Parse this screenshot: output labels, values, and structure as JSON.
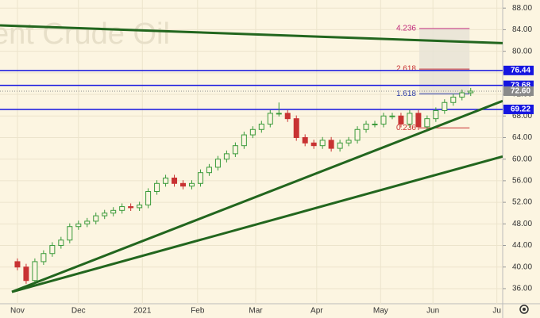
{
  "chart_data": {
    "type": "candlestick",
    "watermark": "ent Crude Oil",
    "xlim": [
      -6,
      167
    ],
    "ylim": [
      33.2,
      89.5
    ],
    "xticks": [
      {
        "value": 0,
        "label": "Nov"
      },
      {
        "value": 21,
        "label": "Dec"
      },
      {
        "value": 43,
        "label": "2021"
      },
      {
        "value": 62,
        "label": "Feb"
      },
      {
        "value": 82,
        "label": "Mar"
      },
      {
        "value": 103,
        "label": "Apr"
      },
      {
        "value": 125,
        "label": "May"
      },
      {
        "value": 143,
        "label": "Jun"
      },
      {
        "value": 165,
        "label": "Ju"
      }
    ],
    "yticks": [
      {
        "value": 36,
        "label": "36.00"
      },
      {
        "value": 40,
        "label": "40.00"
      },
      {
        "value": 44,
        "label": "44.00"
      },
      {
        "value": 48,
        "label": "48.00"
      },
      {
        "value": 52,
        "label": "52.00"
      },
      {
        "value": 56,
        "label": "56.00"
      },
      {
        "value": 60,
        "label": "60.00"
      },
      {
        "value": 64,
        "label": "64.00"
      },
      {
        "value": 68,
        "label": "68.00"
      },
      {
        "value": 72,
        "label": "72.00"
      },
      {
        "value": 76,
        "label": "76.00"
      },
      {
        "value": 80,
        "label": "80.00"
      },
      {
        "value": 84,
        "label": "84.00"
      },
      {
        "value": 88,
        "label": "88.00"
      }
    ],
    "grid": true,
    "up_color": "#3a9a3a",
    "down_color": "#c83232",
    "x": [
      0,
      3,
      6,
      9,
      12,
      15,
      18,
      21,
      24,
      27,
      30,
      33,
      36,
      39,
      42,
      45,
      48,
      51,
      54,
      57,
      60,
      63,
      66,
      69,
      72,
      75,
      78,
      81,
      84,
      87,
      90,
      93,
      96,
      99,
      102,
      105,
      108,
      111,
      114,
      117,
      120,
      123,
      126,
      129,
      132,
      135,
      138,
      141,
      144,
      147,
      150,
      153,
      156
    ],
    "open": [
      41.0,
      40.0,
      37.5,
      41.0,
      42.5,
      44.0,
      45.0,
      47.5,
      48.0,
      48.5,
      49.5,
      50.0,
      50.5,
      51.2,
      51.0,
      51.5,
      54.0,
      55.5,
      56.5,
      55.5,
      55.0,
      55.5,
      57.5,
      58.5,
      60.0,
      61.0,
      62.5,
      64.5,
      65.5,
      66.5,
      68.5,
      68.5,
      67.5,
      64.0,
      63.0,
      62.5,
      63.5,
      62.0,
      63.0,
      63.5,
      65.5,
      66.5,
      66.5,
      68.0,
      68.0,
      66.5,
      68.5,
      66.0,
      67.5,
      69.0,
      70.5,
      71.5,
      72.3
    ],
    "high": [
      41.6,
      40.6,
      41.6,
      43.1,
      44.6,
      45.6,
      48.1,
      48.6,
      49.1,
      50.1,
      50.6,
      51.1,
      51.8,
      51.8,
      52.1,
      54.6,
      56.1,
      57.1,
      57.1,
      56.1,
      56.1,
      58.1,
      59.1,
      60.6,
      61.6,
      63.1,
      65.1,
      66.1,
      67.1,
      69.1,
      70.5,
      69.1,
      68.1,
      64.6,
      63.6,
      64.1,
      64.1,
      63.6,
      64.1,
      66.1,
      67.1,
      67.1,
      68.6,
      68.6,
      68.6,
      69.1,
      69.1,
      68.1,
      69.6,
      71.1,
      72.1,
      72.9,
      73.2
    ],
    "low": [
      39.4,
      36.9,
      36.9,
      40.4,
      41.9,
      43.4,
      44.4,
      46.9,
      47.4,
      47.9,
      48.9,
      49.4,
      49.9,
      50.4,
      50.4,
      50.9,
      53.4,
      54.9,
      54.9,
      54.4,
      54.4,
      54.9,
      56.9,
      57.9,
      59.4,
      60.4,
      61.9,
      63.9,
      64.9,
      65.9,
      67.9,
      66.9,
      63.4,
      62.4,
      61.9,
      61.9,
      61.4,
      61.4,
      62.4,
      62.9,
      64.9,
      65.9,
      65.9,
      67.4,
      65.9,
      65.9,
      65.4,
      65.4,
      66.9,
      68.4,
      69.9,
      70.9,
      71.7
    ],
    "close": [
      40.0,
      37.5,
      41.0,
      42.5,
      44.0,
      45.0,
      47.5,
      48.0,
      48.5,
      49.5,
      50.0,
      50.5,
      51.2,
      51.0,
      51.5,
      54.0,
      55.5,
      56.5,
      55.5,
      55.0,
      55.5,
      57.5,
      58.5,
      60.0,
      61.0,
      62.5,
      64.5,
      65.5,
      66.5,
      68.5,
      68.5,
      67.5,
      64.0,
      63.0,
      62.5,
      63.5,
      62.0,
      63.0,
      63.5,
      65.5,
      66.5,
      66.5,
      68.0,
      68.0,
      66.5,
      68.5,
      66.0,
      67.5,
      69.0,
      70.5,
      71.5,
      72.3,
      72.6
    ],
    "levels": [
      {
        "value": 76.44,
        "label": "76.44",
        "color": "#1515e0"
      },
      {
        "value": 73.68,
        "label": "73.68",
        "color": "#1515e0"
      },
      {
        "value": 69.22,
        "label": "69.22",
        "color": "#1515e0"
      }
    ],
    "last_price": {
      "value": 72.6,
      "label": "72.60",
      "color": "#8a8a8a"
    },
    "trend_color": "#22661e",
    "trendlines": [
      {
        "x": [
          -6,
          167
        ],
        "values": [
          84.8,
          81.5
        ]
      },
      {
        "x": [
          -1.9,
          167
        ],
        "values": [
          35.4,
          70.8
        ]
      },
      {
        "x": [
          -1.9,
          167
        ],
        "values": [
          35.4,
          60.5
        ]
      }
    ],
    "fib_x": [
      138.3,
      155.6
    ],
    "fib": [
      {
        "value": 84.2,
        "label": "4.236",
        "color": "#c0287a"
      },
      {
        "value": 76.7,
        "label": "2.618",
        "color": "#c83232"
      },
      {
        "value": 72.1,
        "label": "1.618",
        "color": "#2a3aa8"
      },
      {
        "value": 65.8,
        "label": "0.236",
        "color": "#c83232"
      }
    ]
  }
}
